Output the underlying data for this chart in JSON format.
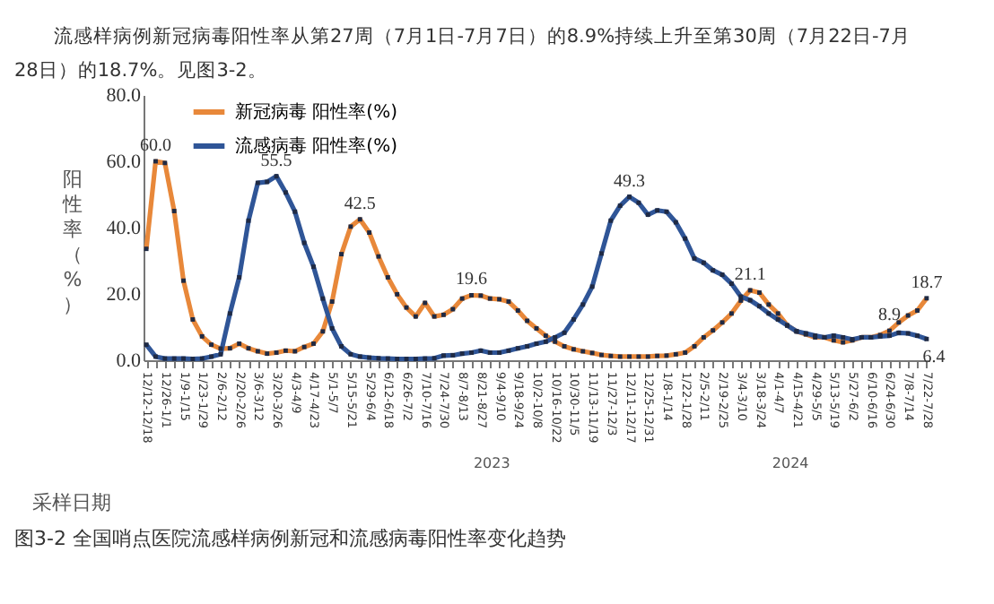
{
  "chart_data": {
    "type": "line",
    "title": "图3-2 全国哨点医院流感样病例新冠和流感病毒阳性率变化趋势",
    "xlabel": "采样日期",
    "ylabel": "阳性率（%）",
    "annotations": [
      "流感样病例新冠病毒阳性率从第27周（7月1日-7月7日）的8.9%持续上升至第30周（7月22日-7月28日）的18.7%。见图3-2。",
      "2023",
      "2024"
    ],
    "categories": [
      "12/12-12/18",
      null,
      "12/26-1/1",
      null,
      "1/9-1/15",
      null,
      "1/23-1/29",
      null,
      "2/6-2/12",
      null,
      "2/20-2/26",
      null,
      "3/6-3/12",
      null,
      "3/20-3/26",
      null,
      "4/3-4/9",
      null,
      "4/17-4/23",
      null,
      "5/1-5/7",
      null,
      "5/15-5/21",
      null,
      "5/29-6/4",
      null,
      "6/12-6/18",
      null,
      "6/26-7/2",
      null,
      "7/10-7/16",
      null,
      "7/24-7/30",
      null,
      "8/7-8/13",
      null,
      "8/21-8/27",
      null,
      "9/4-9/10",
      null,
      "9/18-9/24",
      null,
      "10/2-10/8",
      null,
      "10/16-10/22",
      null,
      "10/30-11/5",
      null,
      "11/13-11/19",
      null,
      "11/27-12/3",
      null,
      "12/11-12/17",
      null,
      "12/25-12/31",
      null,
      "1/8-1/14",
      null,
      "1/22-1/28",
      null,
      "2/5-2/11",
      null,
      "2/19-2/25",
      null,
      "3/4-3/10",
      null,
      "3/18-3/24",
      null,
      "4/1-4/7",
      null,
      "4/15-4/21",
      null,
      "4/29-5/5",
      null,
      "5/13-5/19",
      null,
      "5/27-6/2",
      null,
      "6/10-6/16",
      null,
      "6/24-6/30",
      null,
      "7/8-7/14",
      null,
      "7/22-7/28"
    ],
    "series": [
      {
        "name": "新冠病毒 阳性率(%)",
        "color": "#e8883a",
        "values": [
          33.6,
          60.0,
          59.5,
          45,
          24,
          12.3,
          7.2,
          4.7,
          3.5,
          3.6,
          5,
          3.6,
          2.7,
          2,
          2.3,
          2.9,
          2.7,
          4,
          5,
          8.7,
          17.7,
          32,
          40.3,
          42.5,
          38.5,
          31.3,
          25,
          19.9,
          15.9,
          13.2,
          17.3,
          13.2,
          13.7,
          15.4,
          18.6,
          19.6,
          19.5,
          18.6,
          18.4,
          17.7,
          15,
          11.9,
          9.6,
          7.4,
          5.6,
          4.2,
          3.3,
          2.7,
          2.2,
          1.6,
          1.3,
          1.1,
          1.1,
          1.1,
          1.1,
          1.3,
          1.4,
          1.8,
          2.3,
          4.2,
          6.9,
          9,
          11.4,
          14.1,
          18,
          21.1,
          20.4,
          16.8,
          14.1,
          10.5,
          8.7,
          7.8,
          6.9,
          6.9,
          6,
          5.4,
          6,
          6.9,
          6.9,
          7.6,
          8.9,
          11.4,
          13.5,
          15,
          18.7
        ],
        "value_labels": [
          null,
          "60.0",
          null,
          null,
          null,
          null,
          null,
          null,
          null,
          null,
          null,
          null,
          null,
          null,
          null,
          null,
          null,
          null,
          null,
          null,
          null,
          null,
          null,
          "42.5",
          null,
          null,
          null,
          null,
          null,
          null,
          null,
          null,
          null,
          null,
          null,
          "19.6",
          null,
          null,
          null,
          null,
          null,
          null,
          null,
          null,
          null,
          null,
          null,
          null,
          null,
          null,
          null,
          null,
          null,
          null,
          null,
          null,
          null,
          null,
          null,
          null,
          null,
          null,
          null,
          null,
          null,
          "21.1",
          null,
          null,
          null,
          null,
          null,
          null,
          null,
          null,
          null,
          null,
          null,
          null,
          null,
          null,
          "8.9",
          null,
          null,
          null,
          "18.7"
        ]
      },
      {
        "name": "流感病毒 阳性率(%)",
        "color": "#2f5597",
        "values": [
          4.7,
          1.1,
          0.5,
          0.5,
          0.5,
          0.4,
          0.5,
          1.1,
          1.8,
          14.1,
          25,
          42.1,
          53.5,
          53.8,
          55.5,
          50.6,
          44.8,
          35.4,
          28.2,
          18.6,
          9.6,
          4.2,
          1.8,
          1.1,
          0.8,
          0.6,
          0.5,
          0.4,
          0.4,
          0.4,
          0.5,
          0.6,
          1.4,
          1.5,
          2,
          2.3,
          2.9,
          2.3,
          2.3,
          2.9,
          3.6,
          4.2,
          5,
          5.6,
          6.9,
          8.3,
          12.3,
          16.8,
          22.2,
          32.2,
          42.1,
          46.6,
          49.3,
          47.5,
          43.9,
          45.2,
          44.8,
          41.6,
          36.7,
          30.7,
          29.4,
          27.1,
          25.8,
          23.1,
          19.2,
          18.1,
          16.3,
          14.1,
          12.3,
          10.5,
          8.7,
          8.1,
          7.4,
          6.9,
          7.4,
          6.9,
          6.3,
          6.9,
          6.9,
          7.2,
          7.4,
          8.3,
          8.1,
          7.4,
          6.4
        ],
        "value_labels": [
          null,
          null,
          null,
          null,
          null,
          null,
          null,
          null,
          null,
          null,
          null,
          null,
          null,
          null,
          "55.5",
          null,
          null,
          null,
          null,
          null,
          null,
          null,
          null,
          null,
          null,
          null,
          null,
          null,
          null,
          null,
          null,
          null,
          null,
          null,
          null,
          null,
          null,
          null,
          null,
          null,
          null,
          null,
          null,
          null,
          null,
          null,
          null,
          null,
          null,
          null,
          null,
          null,
          "49.3",
          null,
          null,
          null,
          null,
          null,
          null,
          null,
          null,
          null,
          null,
          null,
          null,
          null,
          null,
          null,
          null,
          null,
          null,
          null,
          null,
          null,
          null,
          null,
          null,
          null,
          null,
          null,
          null,
          null,
          null,
          null,
          "6.4"
        ]
      }
    ],
    "ylim": [
      0,
      80
    ],
    "yticks": [
      {
        "value": 0,
        "label": "0.0"
      },
      {
        "value": 20,
        "label": "20.0"
      },
      {
        "value": 40,
        "label": "40.0"
      },
      {
        "value": 60,
        "label": "60.0"
      },
      {
        "value": 80,
        "label": "80.0"
      }
    ],
    "legend": "top left",
    "marker": "square",
    "line_style": "solid",
    "grid": false
  }
}
